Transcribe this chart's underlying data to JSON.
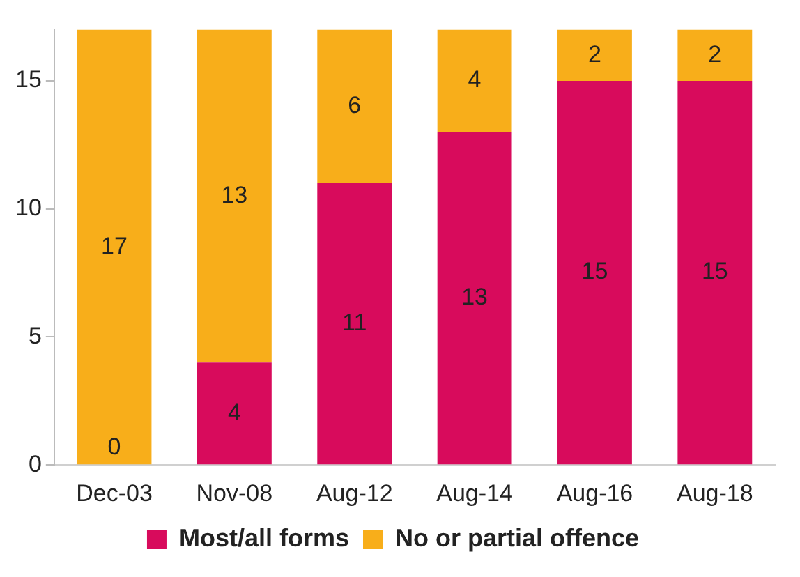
{
  "chart_data": {
    "type": "bar",
    "stacked": true,
    "categories": [
      "Dec-03",
      "Nov-08",
      "Aug-12",
      "Aug-14",
      "Aug-16",
      "Aug-18"
    ],
    "series": [
      {
        "name": "Most/all forms",
        "color": "#d80b5c",
        "values": [
          0,
          4,
          11,
          13,
          15,
          15
        ],
        "value_labels": [
          null,
          "4",
          "11",
          "13",
          "15",
          "15"
        ]
      },
      {
        "name": "No or partial offence",
        "color": "#f8ae1a",
        "values": [
          17,
          13,
          6,
          4,
          2,
          2
        ],
        "value_labels": [
          "17",
          "13",
          "6",
          "4",
          "2",
          "2"
        ]
      }
    ],
    "annotations": [
      {
        "text": "0",
        "x": "Dec-03",
        "y": 0
      }
    ],
    "ylim": [
      0,
      17
    ],
    "yticks": [
      0,
      5,
      10,
      15
    ],
    "grid": false,
    "legend": "bottom"
  }
}
